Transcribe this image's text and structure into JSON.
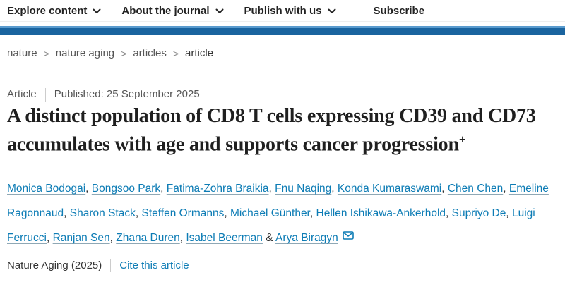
{
  "nav": {
    "items": [
      {
        "label": "Explore content"
      },
      {
        "label": "About the journal"
      },
      {
        "label": "Publish with us"
      }
    ],
    "subscribe_label": "Subscribe"
  },
  "breadcrumb": {
    "links": [
      "nature",
      "nature aging",
      "articles"
    ],
    "current": "article",
    "separator": ">"
  },
  "article_meta": {
    "type": "Article",
    "published": "Published: 25 September 2025"
  },
  "article": {
    "title": "A distinct population of CD8 T cells expressing CD39 and CD73 accumulates with age and supports cancer progression",
    "title_superscript": "+",
    "authors": [
      "Monica Bodogai",
      "Bongsoo Park",
      "Fatima-Zohra Braikia",
      "Fnu Naqing",
      "Konda Kumaraswami",
      "Chen Chen",
      "Emeline Ragonnaud",
      "Sharon Stack",
      "Steffen Ormanns",
      "Michael Günther",
      "Hellen Ishikawa-Ankerhold",
      "Supriyo De",
      "Luigi Ferrucci",
      "Ranjan Sen",
      "Zhana Duren",
      "Isabel Beerman",
      "Arya Biragyn"
    ],
    "author_separator": ", ",
    "author_last_separator": " & ",
    "corresponding_icon": "envelope-icon"
  },
  "footer": {
    "journal_ref": "Nature Aging (2025)",
    "cite_link": "Cite this article"
  },
  "colors": {
    "stripe_dark": "#1a649f",
    "stripe_light": "#5a9bce",
    "link_blue": "#0d7cb5",
    "nav_text": "#222222",
    "muted_text": "#555555"
  }
}
